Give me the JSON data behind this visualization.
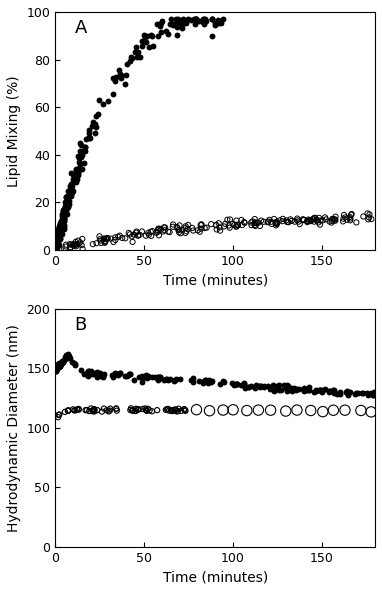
{
  "panel_A": {
    "title": "A",
    "ylabel": "Lipid Mixing (%)",
    "xlabel": "Time (minutes)",
    "xlim": [
      0,
      180
    ],
    "ylim": [
      0,
      100
    ],
    "xticks": [
      0,
      50,
      100,
      150
    ],
    "yticks": [
      0,
      20,
      40,
      60,
      80,
      100
    ]
  },
  "panel_B": {
    "title": "B",
    "ylabel": "Hydrodynamic Diameter (nm)",
    "xlabel": "Time (minutes)",
    "xlim": [
      0,
      180
    ],
    "ylim": [
      0,
      200
    ],
    "xticks": [
      0,
      50,
      100,
      150
    ],
    "yticks": [
      0,
      50,
      100,
      150,
      200
    ]
  },
  "bg_color": "#ffffff",
  "tick_color": "#000000",
  "spine_color": "#000000"
}
